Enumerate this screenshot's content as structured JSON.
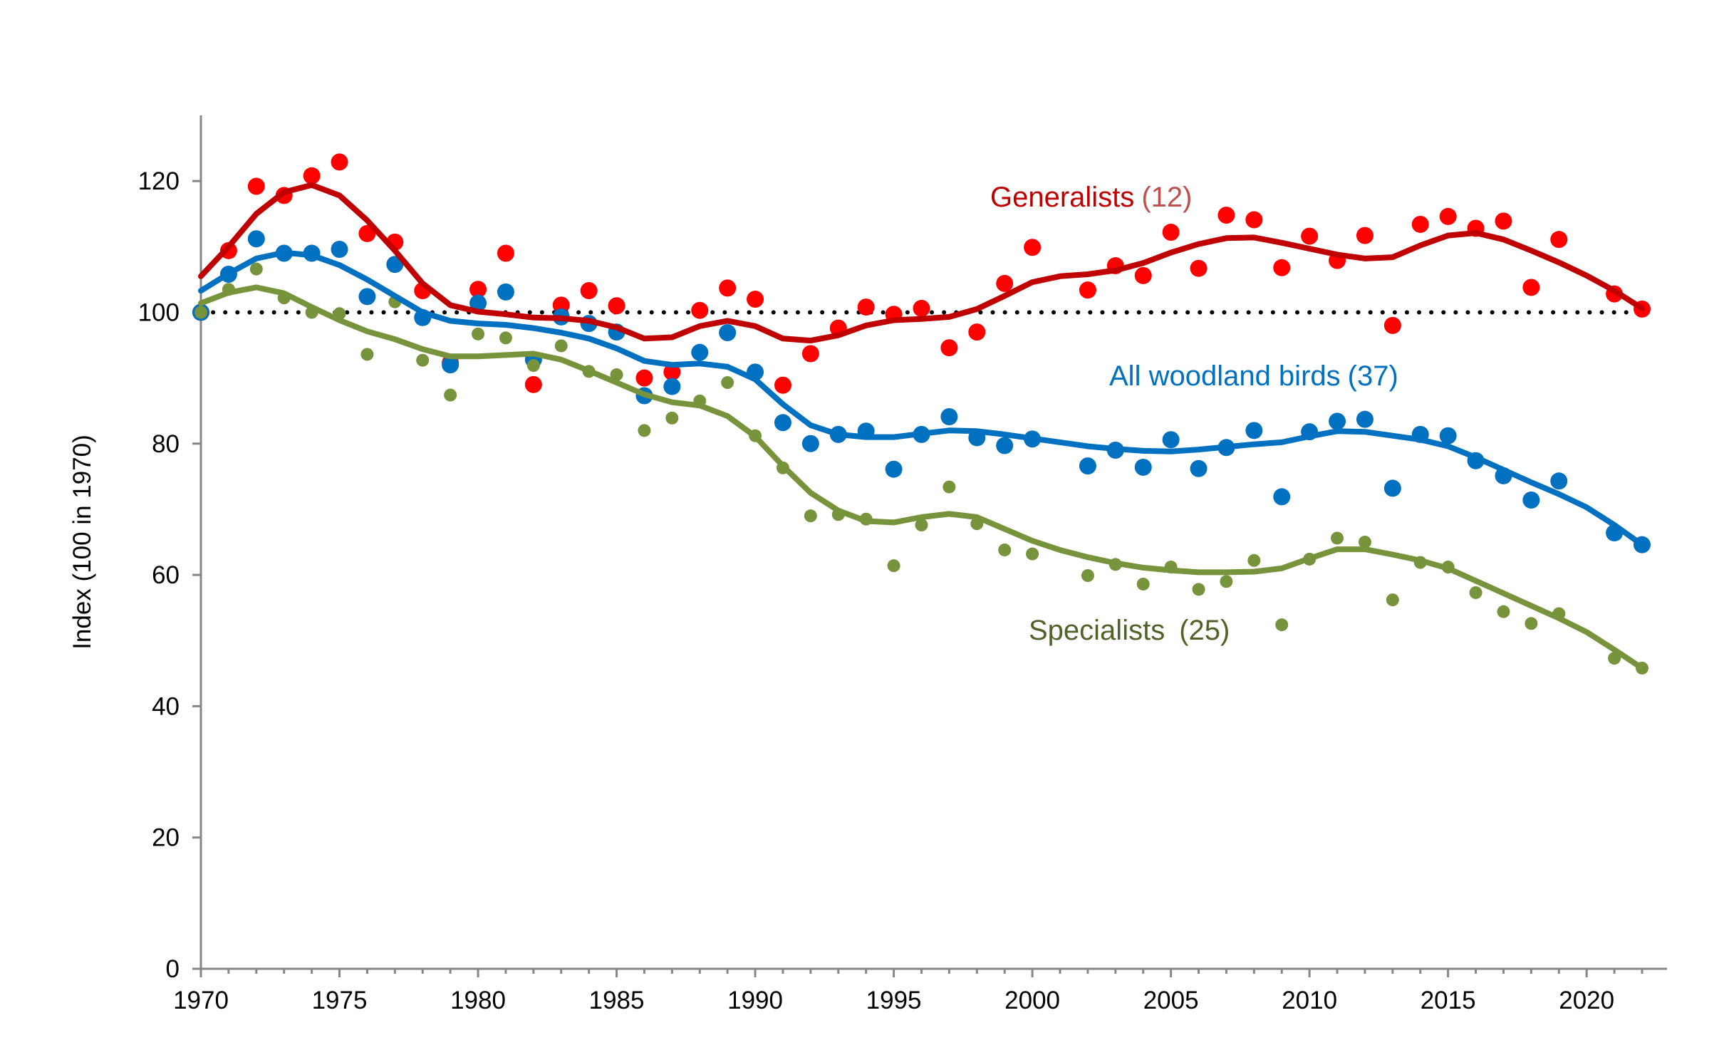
{
  "chart_data": {
    "type": "line",
    "title": "",
    "xlabel": "",
    "ylabel": "Index (100 in 1970)",
    "xlim": [
      1970,
      2022.9
    ],
    "ylim": [
      0,
      130
    ],
    "x_ticks": [
      1970,
      1975,
      1980,
      1985,
      1990,
      1995,
      2000,
      2005,
      2010,
      2015,
      2020
    ],
    "y_ticks": [
      0,
      20,
      40,
      60,
      80,
      100,
      120
    ],
    "baseline": 100,
    "grid": false,
    "series": [
      {
        "name": "Generalists",
        "count_label": "(12)",
        "color": "#C00000",
        "point_color": "#FF0000",
        "label_count_color": "#C0504D",
        "points": [
          [
            1970,
            100
          ],
          [
            1971,
            109.4
          ],
          [
            1972,
            119.2
          ],
          [
            1973,
            117.8
          ],
          [
            1974,
            120.8
          ],
          [
            1975,
            122.9
          ],
          [
            1976,
            112
          ],
          [
            1977,
            110.7
          ],
          [
            1978,
            103.3
          ],
          [
            1979,
            92.3
          ],
          [
            1980,
            103.5
          ],
          [
            1981,
            109
          ],
          [
            1982,
            89
          ],
          [
            1983,
            101.1
          ],
          [
            1984,
            103.3
          ],
          [
            1985,
            101
          ],
          [
            1986,
            90
          ],
          [
            1987,
            90.9
          ],
          [
            1988,
            100.3
          ],
          [
            1989,
            103.7
          ],
          [
            1990,
            102
          ],
          [
            1991,
            88.9
          ],
          [
            1992,
            93.7
          ],
          [
            1993,
            97.6
          ],
          [
            1994,
            100.8
          ],
          [
            1995,
            99.7
          ],
          [
            1996,
            100.6
          ],
          [
            1997,
            94.6
          ],
          [
            1998,
            97
          ],
          [
            1999,
            104.4
          ],
          [
            2000,
            109.9
          ],
          [
            2002,
            103.4
          ],
          [
            2003,
            107.1
          ],
          [
            2004,
            105.6
          ],
          [
            2005,
            112.2
          ],
          [
            2006,
            106.7
          ],
          [
            2007,
            114.8
          ],
          [
            2008,
            114.1
          ],
          [
            2009,
            106.8
          ],
          [
            2010,
            111.6
          ],
          [
            2011,
            107.9
          ],
          [
            2012,
            111.7
          ],
          [
            2013,
            98
          ],
          [
            2014,
            113.4
          ],
          [
            2015,
            114.6
          ],
          [
            2016,
            112.8
          ],
          [
            2017,
            113.9
          ],
          [
            2018,
            103.8
          ],
          [
            2019,
            111.1
          ],
          [
            2021,
            102.8
          ],
          [
            2022,
            100.5
          ]
        ],
        "smoothed": [
          [
            1970,
            105.5
          ],
          [
            1971,
            110
          ],
          [
            1972,
            115
          ],
          [
            1973,
            118.3
          ],
          [
            1974,
            119.4
          ],
          [
            1975,
            117.8
          ],
          [
            1976,
            114
          ],
          [
            1977,
            109.4
          ],
          [
            1978,
            104.4
          ],
          [
            1979,
            101.1
          ],
          [
            1980,
            100.1
          ],
          [
            1981,
            99.7
          ],
          [
            1982,
            99.2
          ],
          [
            1983,
            99.1
          ],
          [
            1984,
            98.7
          ],
          [
            1985,
            97.7
          ],
          [
            1986,
            96
          ],
          [
            1987,
            96.2
          ],
          [
            1988,
            97.9
          ],
          [
            1989,
            98.7
          ],
          [
            1990,
            97.9
          ],
          [
            1991,
            96
          ],
          [
            1992,
            95.7
          ],
          [
            1993,
            96.5
          ],
          [
            1994,
            98
          ],
          [
            1995,
            98.8
          ],
          [
            1996,
            99
          ],
          [
            1997,
            99.3
          ],
          [
            1998,
            100.5
          ],
          [
            1999,
            102.5
          ],
          [
            2000,
            104.6
          ],
          [
            2001,
            105.5
          ],
          [
            2002,
            105.8
          ],
          [
            2003,
            106.4
          ],
          [
            2004,
            107.5
          ],
          [
            2005,
            109.1
          ],
          [
            2006,
            110.4
          ],
          [
            2007,
            111.3
          ],
          [
            2008,
            111.4
          ],
          [
            2009,
            110.6
          ],
          [
            2010,
            109.7
          ],
          [
            2011,
            108.8
          ],
          [
            2012,
            108.2
          ],
          [
            2013,
            108.4
          ],
          [
            2014,
            110.2
          ],
          [
            2015,
            111.7
          ],
          [
            2016,
            112.1
          ],
          [
            2017,
            111.1
          ],
          [
            2018,
            109.4
          ],
          [
            2019,
            107.6
          ],
          [
            2020,
            105.6
          ],
          [
            2021,
            103.3
          ],
          [
            2022,
            100.6
          ]
        ]
      },
      {
        "name": "All woodland birds",
        "count_label": "(37)",
        "color": "#0070C0",
        "point_color": "#0070C0",
        "label_count_color": "#0070C0",
        "points": [
          [
            1970,
            100
          ],
          [
            1971,
            105.8
          ],
          [
            1972,
            111.2
          ],
          [
            1973,
            109
          ],
          [
            1974,
            109
          ],
          [
            1975,
            109.6
          ],
          [
            1976,
            102.4
          ],
          [
            1977,
            107.3
          ],
          [
            1978,
            99.2
          ],
          [
            1979,
            92
          ],
          [
            1980,
            101.4
          ],
          [
            1981,
            103.1
          ],
          [
            1982,
            92.8
          ],
          [
            1983,
            99.3
          ],
          [
            1984,
            98.3
          ],
          [
            1985,
            97
          ],
          [
            1986,
            87.3
          ],
          [
            1987,
            88.7
          ],
          [
            1988,
            93.9
          ],
          [
            1989,
            96.9
          ],
          [
            1990,
            90.9
          ],
          [
            1991,
            83.2
          ],
          [
            1992,
            80
          ],
          [
            1993,
            81.4
          ],
          [
            1994,
            81.9
          ],
          [
            1995,
            76.1
          ],
          [
            1996,
            81.4
          ],
          [
            1997,
            84.1
          ],
          [
            1998,
            80.9
          ],
          [
            1999,
            79.7
          ],
          [
            2000,
            80.7
          ],
          [
            2002,
            76.6
          ],
          [
            2003,
            79
          ],
          [
            2004,
            76.4
          ],
          [
            2005,
            80.6
          ],
          [
            2006,
            76.2
          ],
          [
            2007,
            79.4
          ],
          [
            2008,
            82
          ],
          [
            2009,
            71.9
          ],
          [
            2010,
            81.8
          ],
          [
            2011,
            83.4
          ],
          [
            2012,
            83.7
          ],
          [
            2013,
            73.2
          ],
          [
            2014,
            81.4
          ],
          [
            2015,
            81.2
          ],
          [
            2016,
            77.4
          ],
          [
            2017,
            75.1
          ],
          [
            2018,
            71.4
          ],
          [
            2019,
            74.3
          ],
          [
            2021,
            66.4
          ],
          [
            2022,
            64.6
          ]
        ],
        "smoothed": [
          [
            1970,
            103.3
          ],
          [
            1971,
            105.9
          ],
          [
            1972,
            108.2
          ],
          [
            1973,
            109.1
          ],
          [
            1974,
            108.7
          ],
          [
            1975,
            107.2
          ],
          [
            1976,
            105
          ],
          [
            1977,
            102.5
          ],
          [
            1978,
            100
          ],
          [
            1979,
            98.7
          ],
          [
            1980,
            98.3
          ],
          [
            1981,
            98.1
          ],
          [
            1982,
            97.6
          ],
          [
            1983,
            96.9
          ],
          [
            1984,
            96
          ],
          [
            1985,
            94.5
          ],
          [
            1986,
            92.6
          ],
          [
            1987,
            92
          ],
          [
            1988,
            92.2
          ],
          [
            1989,
            91.7
          ],
          [
            1990,
            89.8
          ],
          [
            1991,
            86
          ],
          [
            1992,
            82.8
          ],
          [
            1993,
            81.4
          ],
          [
            1994,
            81
          ],
          [
            1995,
            81
          ],
          [
            1996,
            81.5
          ],
          [
            1997,
            82
          ],
          [
            1998,
            81.9
          ],
          [
            1999,
            81.4
          ],
          [
            2000,
            80.8
          ],
          [
            2001,
            80.2
          ],
          [
            2002,
            79.6
          ],
          [
            2003,
            79.2
          ],
          [
            2004,
            78.9
          ],
          [
            2005,
            78.8
          ],
          [
            2006,
            79.1
          ],
          [
            2007,
            79.5
          ],
          [
            2008,
            79.9
          ],
          [
            2009,
            80.2
          ],
          [
            2010,
            81.1
          ],
          [
            2011,
            81.9
          ],
          [
            2012,
            81.8
          ],
          [
            2013,
            81.2
          ],
          [
            2014,
            80.6
          ],
          [
            2015,
            79.6
          ],
          [
            2016,
            77.9
          ],
          [
            2017,
            76
          ],
          [
            2018,
            74.1
          ],
          [
            2019,
            72.3
          ],
          [
            2020,
            70.3
          ],
          [
            2021,
            67.6
          ],
          [
            2022,
            64.6
          ]
        ]
      },
      {
        "name": "Specialists",
        "count_label": "(25)",
        "color": "#77933C",
        "point_color": "#77933C",
        "label_count_color": "#4F6228",
        "points": [
          [
            1970,
            100
          ],
          [
            1971,
            103.5
          ],
          [
            1972,
            106.6
          ],
          [
            1973,
            102.2
          ],
          [
            1974,
            100
          ],
          [
            1975,
            99.8
          ],
          [
            1976,
            93.6
          ],
          [
            1977,
            101.6
          ],
          [
            1978,
            92.7
          ],
          [
            1979,
            87.4
          ],
          [
            1980,
            96.7
          ],
          [
            1981,
            96.1
          ],
          [
            1982,
            91.9
          ],
          [
            1983,
            94.9
          ],
          [
            1984,
            91
          ],
          [
            1985,
            90.5
          ],
          [
            1986,
            82
          ],
          [
            1987,
            83.9
          ],
          [
            1988,
            86.5
          ],
          [
            1989,
            89.3
          ],
          [
            1990,
            81.2
          ],
          [
            1991,
            76.3
          ],
          [
            1992,
            69
          ],
          [
            1993,
            69.2
          ],
          [
            1994,
            68.5
          ],
          [
            1995,
            61.4
          ],
          [
            1996,
            67.6
          ],
          [
            1997,
            73.4
          ],
          [
            1998,
            67.8
          ],
          [
            1999,
            63.8
          ],
          [
            2000,
            63.2
          ],
          [
            2002,
            59.9
          ],
          [
            2003,
            61.6
          ],
          [
            2004,
            58.6
          ],
          [
            2005,
            61.2
          ],
          [
            2006,
            57.8
          ],
          [
            2007,
            59
          ],
          [
            2008,
            62.2
          ],
          [
            2009,
            52.4
          ],
          [
            2010,
            62.4
          ],
          [
            2011,
            65.6
          ],
          [
            2012,
            65
          ],
          [
            2013,
            56.2
          ],
          [
            2014,
            61.9
          ],
          [
            2015,
            61.2
          ],
          [
            2016,
            57.3
          ],
          [
            2017,
            54.4
          ],
          [
            2018,
            52.6
          ],
          [
            2019,
            54.1
          ],
          [
            2021,
            47.3
          ],
          [
            2022,
            45.8
          ]
        ],
        "smoothed": [
          [
            1970,
            101.4
          ],
          [
            1971,
            103
          ],
          [
            1972,
            103.8
          ],
          [
            1973,
            102.9
          ],
          [
            1974,
            100.8
          ],
          [
            1975,
            98.8
          ],
          [
            1976,
            97.1
          ],
          [
            1977,
            95.9
          ],
          [
            1978,
            94.4
          ],
          [
            1979,
            93.3
          ],
          [
            1980,
            93.3
          ],
          [
            1981,
            93.5
          ],
          [
            1982,
            93.7
          ],
          [
            1983,
            92.8
          ],
          [
            1984,
            91.1
          ],
          [
            1985,
            89.3
          ],
          [
            1986,
            87.5
          ],
          [
            1987,
            86.3
          ],
          [
            1988,
            85.8
          ],
          [
            1989,
            84.2
          ],
          [
            1990,
            81.1
          ],
          [
            1991,
            76.6
          ],
          [
            1992,
            72.5
          ],
          [
            1993,
            69.8
          ],
          [
            1994,
            68.2
          ],
          [
            1995,
            68
          ],
          [
            1996,
            68.8
          ],
          [
            1997,
            69.3
          ],
          [
            1998,
            68.8
          ],
          [
            1999,
            67
          ],
          [
            2000,
            65.2
          ],
          [
            2001,
            63.8
          ],
          [
            2002,
            62.7
          ],
          [
            2003,
            61.8
          ],
          [
            2004,
            61.1
          ],
          [
            2005,
            60.7
          ],
          [
            2006,
            60.4
          ],
          [
            2007,
            60.4
          ],
          [
            2008,
            60.5
          ],
          [
            2009,
            61
          ],
          [
            2010,
            62.5
          ],
          [
            2011,
            63.9
          ],
          [
            2012,
            63.9
          ],
          [
            2013,
            63.1
          ],
          [
            2014,
            62.2
          ],
          [
            2015,
            61
          ],
          [
            2016,
            59.1
          ],
          [
            2017,
            57.2
          ],
          [
            2018,
            55.3
          ],
          [
            2019,
            53.4
          ],
          [
            2020,
            51.3
          ],
          [
            2021,
            48.6
          ],
          [
            2022,
            45.8
          ]
        ]
      }
    ]
  }
}
